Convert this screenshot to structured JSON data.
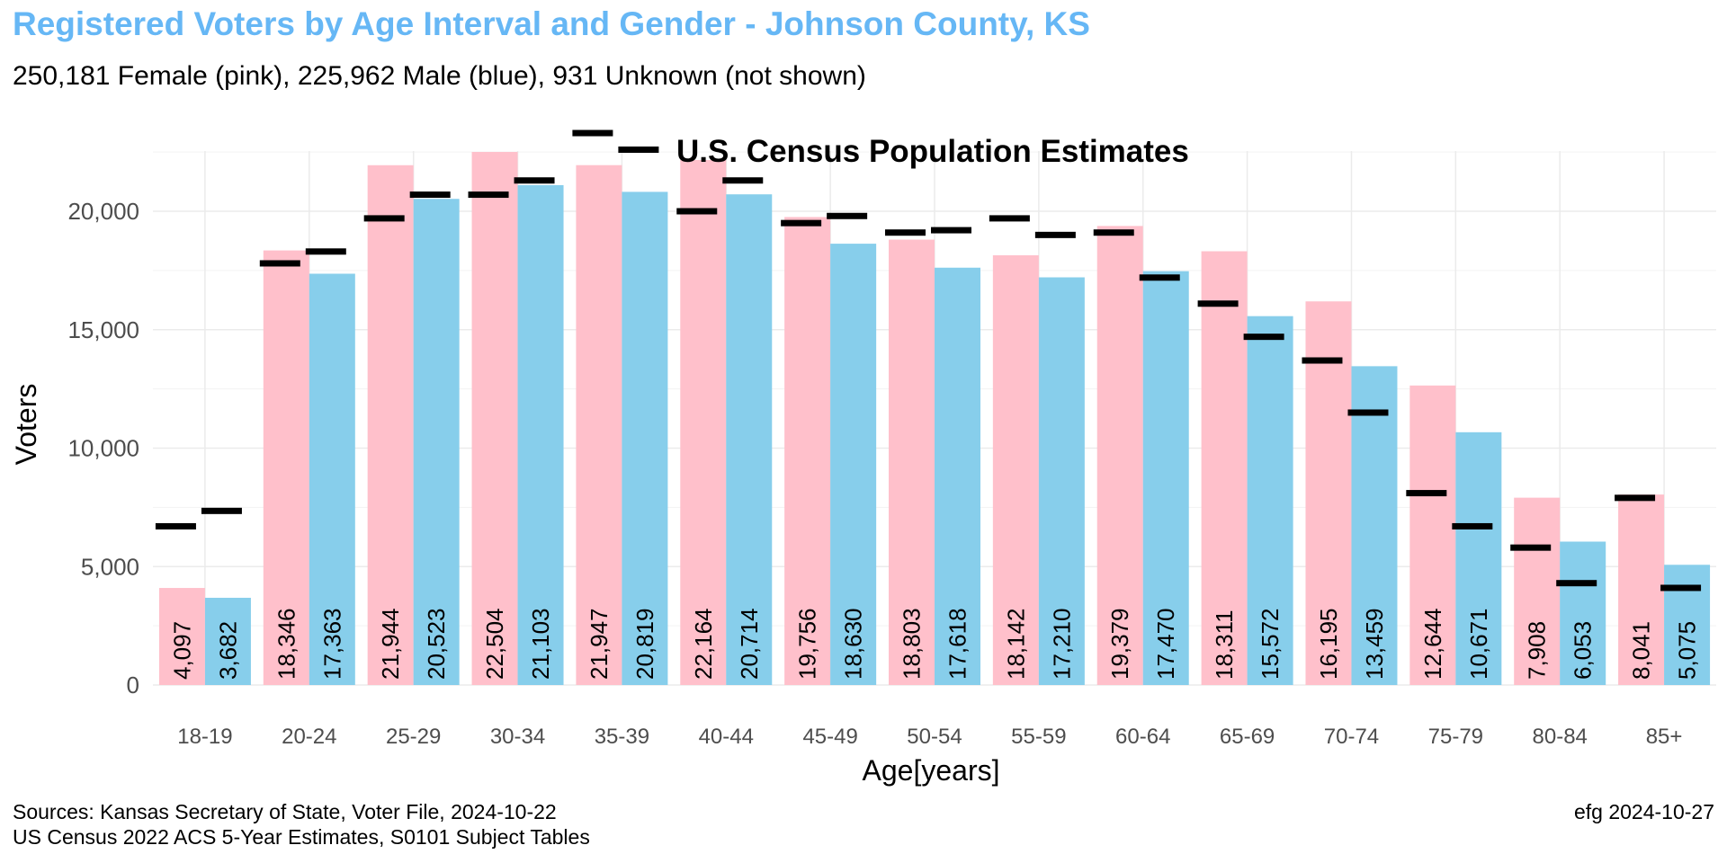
{
  "title": "Registered Voters by Age Interval and Gender - Johnson County, KS",
  "subtitle": "250,181 Female (pink),  225,962 Male (blue),  931 Unknown (not shown)",
  "sources": {
    "line1": "Sources: Kansas Secretary of State, Voter File, 2024-10-22",
    "line2": "US Census 2022 ACS 5-Year Estimates, S0101 Subject Tables"
  },
  "credit": "efg 2024-10-27",
  "colors": {
    "female": "#ffc0cb",
    "male": "#87ceeb",
    "census_marker": "#000000",
    "title": "#66b7f5",
    "grid": "#ebebeb"
  },
  "chart_data": {
    "type": "bar",
    "xlabel": "Age[years]",
    "ylabel": "Voters",
    "ylim": [
      0,
      23000
    ],
    "yticks": [
      0,
      5000,
      10000,
      15000,
      20000
    ],
    "ytick_labels": [
      "0",
      "5,000",
      "10,000",
      "15,000",
      "20,000"
    ],
    "grid": true,
    "annotation": "U.S. Census Population Estimates",
    "categories": [
      "18-19",
      "20-24",
      "25-29",
      "30-34",
      "35-39",
      "40-44",
      "45-49",
      "50-54",
      "55-59",
      "60-64",
      "65-69",
      "70-74",
      "75-79",
      "80-84",
      "85+"
    ],
    "series": [
      {
        "key": "female",
        "values": [
          4097,
          18346,
          21944,
          22504,
          21947,
          22164,
          19756,
          18803,
          18142,
          19379,
          18311,
          16195,
          12644,
          7908,
          8041
        ],
        "labels": [
          "4,097",
          "18,346",
          "21,944",
          "22,504",
          "21,947",
          "22,164",
          "19,756",
          "18,803",
          "18,142",
          "19,379",
          "18,311",
          "16,195",
          "12,644",
          "7,908",
          "8,041"
        ]
      },
      {
        "key": "male",
        "values": [
          3682,
          17363,
          20523,
          21103,
          20819,
          20714,
          18630,
          17618,
          17210,
          17470,
          15572,
          13459,
          10671,
          6053,
          5075
        ],
        "labels": [
          "3,682",
          "17,363",
          "20,523",
          "21,103",
          "20,819",
          "20,714",
          "18,630",
          "17,618",
          "17,210",
          "17,470",
          "15,572",
          "13,459",
          "10,671",
          "6,053",
          "5,075"
        ]
      }
    ],
    "census_estimates": {
      "female": [
        6700,
        17800,
        19700,
        20700,
        23300,
        20000,
        19500,
        19100,
        19700,
        19100,
        16100,
        13700,
        8100,
        5800,
        7900
      ],
      "male": [
        7350,
        18300,
        20700,
        21300,
        22600,
        21300,
        19800,
        19200,
        19000,
        17200,
        14700,
        11500,
        6700,
        4300,
        4100
      ]
    }
  }
}
